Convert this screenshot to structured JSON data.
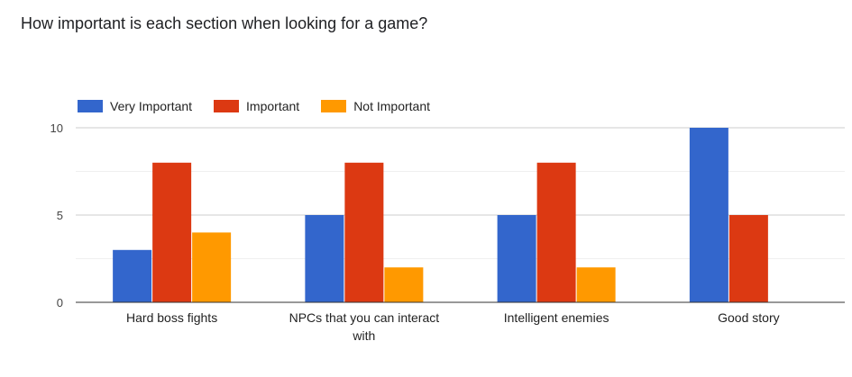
{
  "chart_data": {
    "type": "bar",
    "title": "How important is each section when looking for a game?",
    "categories": [
      "Hard boss fights",
      "NPCs that you can interact with",
      "Intelligent enemies",
      "Good story"
    ],
    "category_lines": [
      [
        "Hard boss fights"
      ],
      [
        "NPCs that you can interact",
        "with"
      ],
      [
        "Intelligent enemies"
      ],
      [
        "Good story"
      ]
    ],
    "series": [
      {
        "name": "Very Important",
        "color": "#3366cc",
        "values": [
          3,
          5,
          5,
          10
        ]
      },
      {
        "name": "Important",
        "color": "#dc3912",
        "values": [
          8,
          8,
          8,
          5
        ]
      },
      {
        "name": "Not Important",
        "color": "#ff9900",
        "values": [
          4,
          2,
          2,
          0
        ]
      }
    ],
    "ylim": [
      0,
      10
    ],
    "yticks": [
      0,
      5,
      10
    ],
    "xlabel": "",
    "ylabel": "",
    "legend_position": "top-left",
    "grid": true
  }
}
